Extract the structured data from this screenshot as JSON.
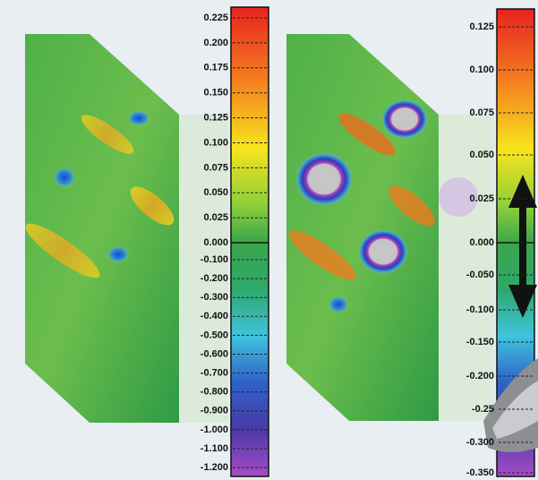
{
  "panels": [
    {
      "colorbar_labels": [
        "0.225",
        "0.200",
        "0.175",
        "0.150",
        "0.125",
        "0.100",
        "0.075",
        "0.050",
        "0.025",
        "0.000",
        "-0.100",
        "-0.200",
        "-0.300",
        "-0.400",
        "-0.500",
        "-0.600",
        "-0.700",
        "-0.800",
        "-0.900",
        "-1.000",
        "-1.100",
        "-1.200"
      ]
    },
    {
      "colorbar_labels": [
        "0.125",
        "0.100",
        "0.075",
        "0.050",
        "0.025",
        "0.000",
        "-0.050",
        "-0.100",
        "-0.150",
        "-0.200",
        "-0.25",
        "-0.300",
        "-0.350"
      ]
    }
  ]
}
